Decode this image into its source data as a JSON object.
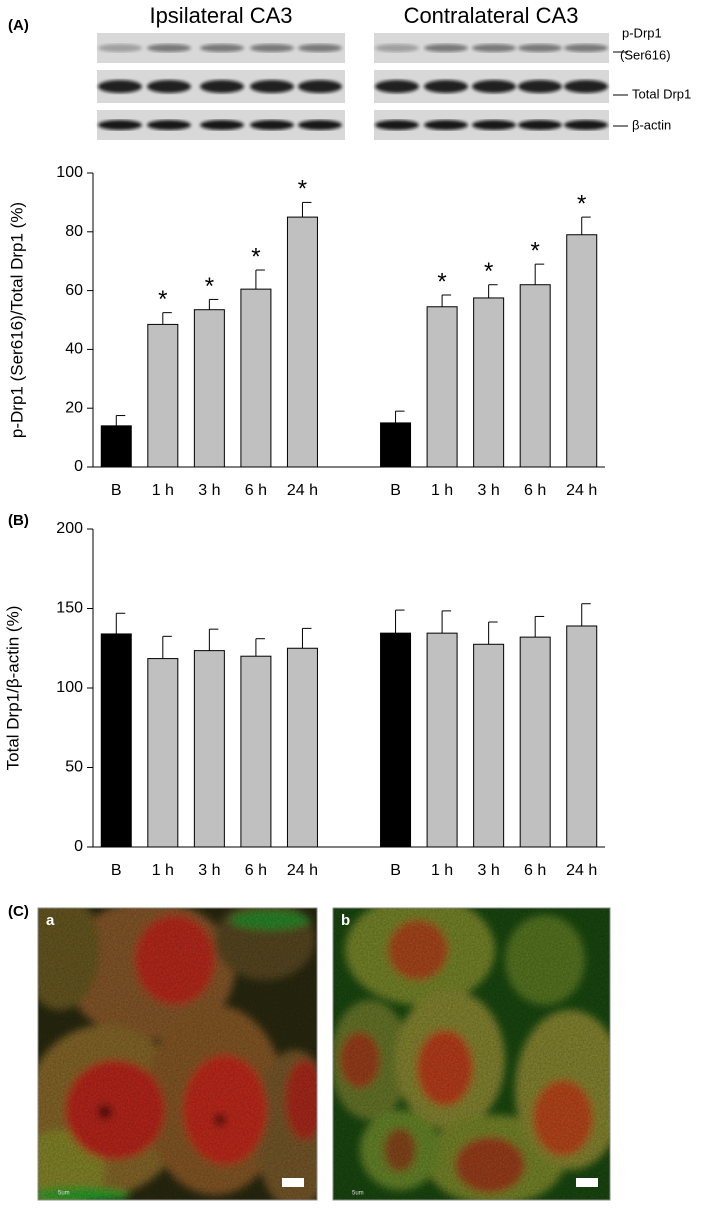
{
  "figure": {
    "panel_a": "(A)",
    "ipsilateral": "Ipsilateral CA3",
    "contralateral": "Contralateral CA3",
    "blot_labels": [
      "p-Drp1",
      "(Ser616)",
      "Total Drp1",
      "β-actin"
    ],
    "panel_b": "(B)",
    "panel_c": "(C)",
    "image_a": "a",
    "image_b": "b",
    "scale_a": "5um",
    "scale_b": "5um"
  },
  "chart_data": [
    {
      "type": "bar",
      "ylabel": "p-Drp1 (Ser616)/Total Drp1 (%)",
      "categories": [
        "B",
        "1 h",
        "3 h",
        "6 h",
        "24 h",
        null,
        "B",
        "1 h",
        "3 h",
        "6 h",
        "24 h"
      ],
      "values": [
        14,
        48.5,
        53.5,
        60.5,
        85,
        null,
        15,
        54.5,
        57.5,
        62,
        79
      ],
      "errors": [
        3.5,
        4,
        3.5,
        6.5,
        5,
        null,
        4,
        4,
        4.5,
        7,
        6
      ],
      "significance": [
        null,
        "*",
        "*",
        "*",
        "*",
        null,
        null,
        "*",
        "*",
        "*",
        "*"
      ],
      "colors": [
        "#000000",
        "#c0c0c0",
        "#c0c0c0",
        "#c0c0c0",
        "#c0c0c0",
        null,
        "#000000",
        "#c0c0c0",
        "#c0c0c0",
        "#c0c0c0",
        "#c0c0c0"
      ],
      "ylim": [
        0,
        100
      ],
      "yticks": [
        0,
        20,
        40,
        60,
        80,
        100
      ],
      "grid": false
    },
    {
      "type": "bar",
      "ylabel": "Total Drp1/β-actin (%)",
      "categories": [
        "B",
        "1 h",
        "3 h",
        "6 h",
        "24 h",
        null,
        "B",
        "1 h",
        "3 h",
        "6 h",
        "24 h"
      ],
      "values": [
        134,
        118.5,
        123.5,
        120,
        125,
        null,
        134.5,
        134.5,
        127.5,
        132,
        139
      ],
      "errors": [
        13,
        14,
        13.5,
        11,
        12.5,
        null,
        14.5,
        14,
        14,
        13,
        14
      ],
      "colors": [
        "#000000",
        "#c0c0c0",
        "#c0c0c0",
        "#c0c0c0",
        "#c0c0c0",
        null,
        "#000000",
        "#c0c0c0",
        "#c0c0c0",
        "#c0c0c0",
        "#c0c0c0"
      ],
      "ylim": [
        0,
        200
      ],
      "yticks": [
        0,
        50,
        100,
        150,
        200
      ],
      "grid": false
    }
  ]
}
